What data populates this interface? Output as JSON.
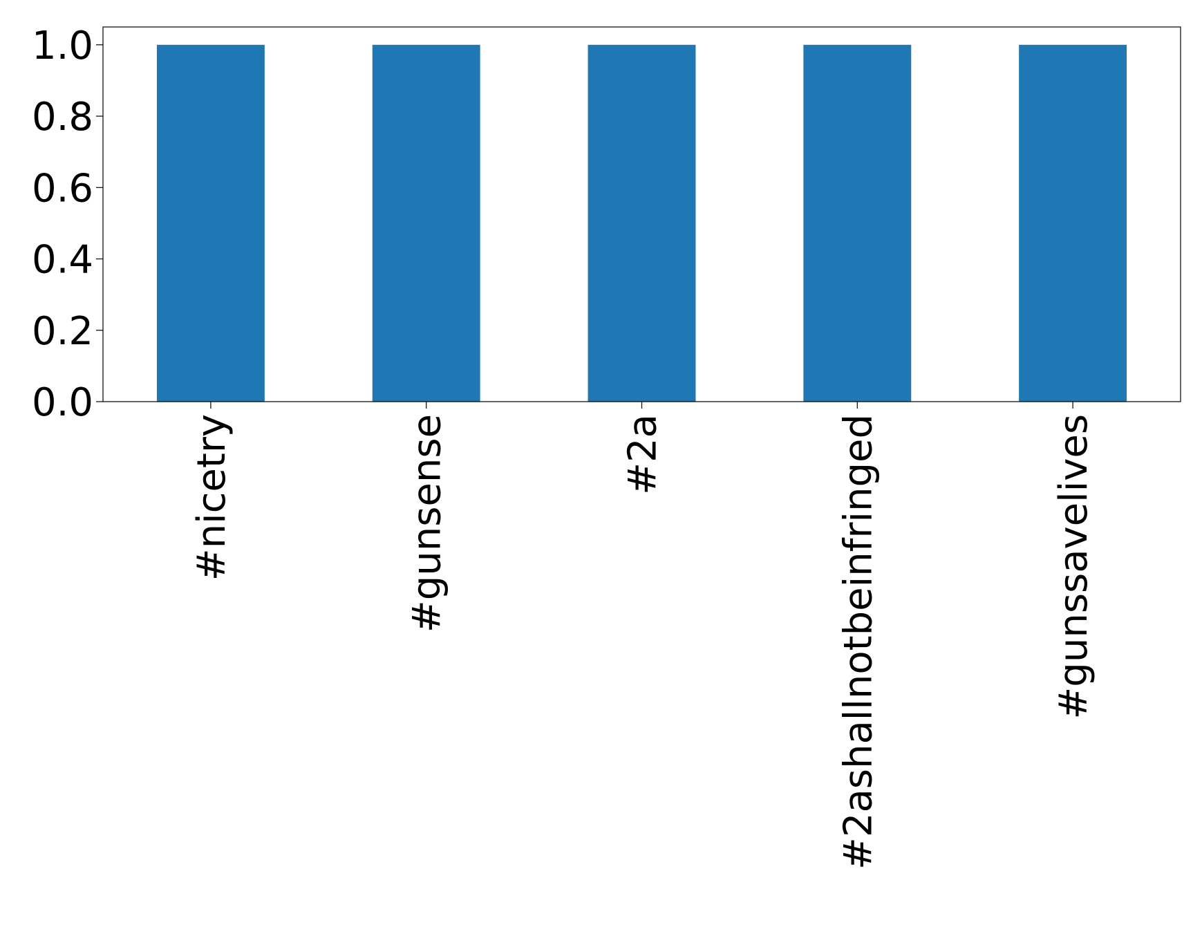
{
  "chart_data": {
    "type": "bar",
    "categories": [
      "#nicetry",
      "#gunsense",
      "#2a",
      "#2ashallnotbeinfringed",
      "#gunssavelives"
    ],
    "values": [
      1,
      1,
      1,
      1,
      1
    ],
    "color": "#1f77b4",
    "ylim": [
      0,
      1.05
    ],
    "yticks": [
      {
        "value": 0,
        "label": "0.0"
      },
      0.2,
      0.4,
      0.6,
      0.8,
      {
        "value": 1,
        "label": "1.0"
      }
    ],
    "grid": false
  }
}
